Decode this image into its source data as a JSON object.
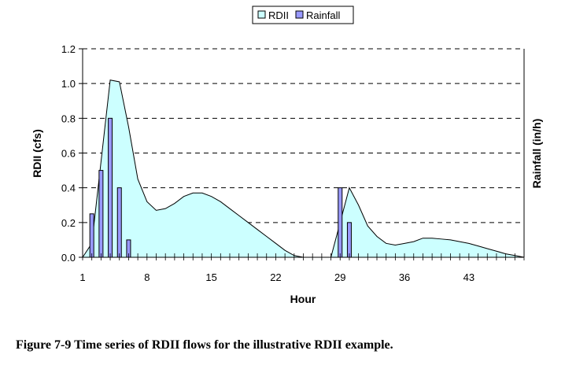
{
  "chart_data": {
    "type": "area",
    "xlabel": "Hour",
    "ylabel": "RDII (cfs)",
    "y2label": "Rainfall (in/h)",
    "xlim": [
      1,
      49
    ],
    "ylim": [
      0,
      1.2
    ],
    "x_ticks": [
      1,
      8,
      15,
      22,
      29,
      36,
      43
    ],
    "y_ticks": [
      "0.0",
      "0.2",
      "0.4",
      "0.6",
      "0.8",
      "1.0",
      "1.2"
    ],
    "grid": "horizontal-dashed",
    "legend_position": "top-center",
    "series": [
      {
        "name": "RDII",
        "kind": "area",
        "color": "#ccffff",
        "points": [
          [
            1,
            0
          ],
          [
            2,
            0.08
          ],
          [
            3,
            0.55
          ],
          [
            4,
            1.02
          ],
          [
            5,
            1.01
          ],
          [
            6,
            0.75
          ],
          [
            7,
            0.45
          ],
          [
            8,
            0.32
          ],
          [
            9,
            0.27
          ],
          [
            10,
            0.28
          ],
          [
            11,
            0.31
          ],
          [
            12,
            0.35
          ],
          [
            13,
            0.37
          ],
          [
            14,
            0.37
          ],
          [
            15,
            0.35
          ],
          [
            16,
            0.32
          ],
          [
            17,
            0.28
          ],
          [
            18,
            0.24
          ],
          [
            19,
            0.2
          ],
          [
            20,
            0.16
          ],
          [
            21,
            0.12
          ],
          [
            22,
            0.08
          ],
          [
            23,
            0.04
          ],
          [
            24,
            0.01
          ],
          [
            25,
            0
          ],
          [
            28,
            0
          ],
          [
            29,
            0.2
          ],
          [
            30,
            0.4
          ],
          [
            31,
            0.3
          ],
          [
            32,
            0.18
          ],
          [
            33,
            0.12
          ],
          [
            34,
            0.08
          ],
          [
            35,
            0.07
          ],
          [
            36,
            0.08
          ],
          [
            37,
            0.09
          ],
          [
            38,
            0.11
          ],
          [
            39,
            0.11
          ],
          [
            40,
            0.105
          ],
          [
            41,
            0.1
          ],
          [
            42,
            0.09
          ],
          [
            43,
            0.08
          ],
          [
            44,
            0.065
          ],
          [
            45,
            0.05
          ],
          [
            46,
            0.035
          ],
          [
            47,
            0.02
          ],
          [
            48,
            0.01
          ],
          [
            49,
            0
          ]
        ]
      },
      {
        "name": "Rainfall",
        "kind": "bar",
        "color": "#9999ff",
        "points": [
          [
            2,
            0.25
          ],
          [
            3,
            0.5
          ],
          [
            4,
            0.8
          ],
          [
            5,
            0.4
          ],
          [
            6,
            0.1
          ],
          [
            29,
            0.4
          ],
          [
            30,
            0.2
          ]
        ]
      }
    ]
  },
  "legend": {
    "items": [
      {
        "label": "RDII",
        "color": "#ccffff"
      },
      {
        "label": "Rainfall",
        "color": "#9999ff"
      }
    ]
  },
  "caption": "Figure 7-9 Time series of RDII flows for the illustrative RDII example."
}
